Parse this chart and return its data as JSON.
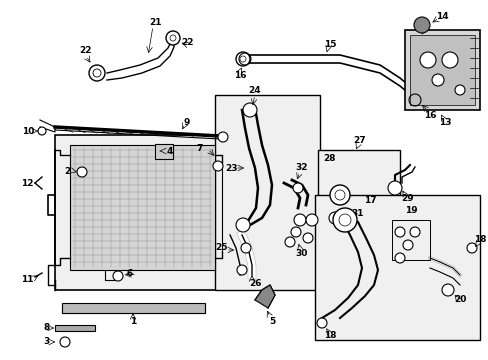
{
  "bg_color": "#ffffff",
  "line_color": "#000000",
  "fig_width": 4.89,
  "fig_height": 3.6,
  "dpi": 100,
  "label_fs": 6.5,
  "label_fs_small": 5.5
}
